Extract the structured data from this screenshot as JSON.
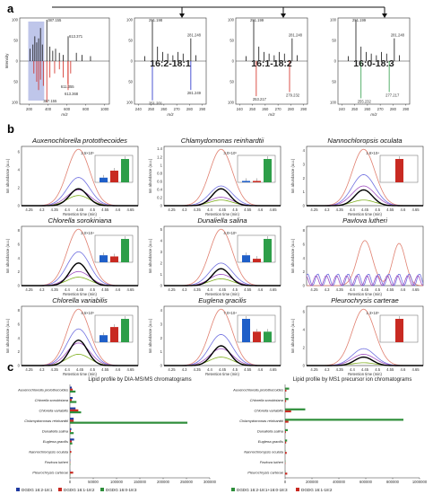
{
  "panel_labels": {
    "a": "a",
    "b": "b",
    "c": "c"
  },
  "panel_a": {
    "spectra": [
      {
        "id": "full",
        "xlabel": "m/z",
        "ylabel": "Intensity",
        "xticks": [
          "200",
          "400",
          "600",
          "800",
          "1000"
        ],
        "yticks": [
          "100",
          "50",
          "0",
          "50",
          "100"
        ],
        "peak_labels": {
          "top_a": "387.155",
          "top_b": "613.371",
          "bot_a": "387.155",
          "bot_b": "611.355",
          "bot_c": "613.368"
        },
        "top_peaks": [
          [
            210,
            30
          ],
          [
            240,
            40
          ],
          [
            260,
            60
          ],
          [
            280,
            45
          ],
          [
            300,
            55
          ],
          [
            320,
            80
          ],
          [
            340,
            40
          ],
          [
            387,
            100
          ],
          [
            420,
            35
          ],
          [
            450,
            25
          ],
          [
            480,
            30
          ],
          [
            520,
            20
          ],
          [
            560,
            15
          ],
          [
            613,
            60
          ],
          [
            700,
            20
          ],
          [
            760,
            15
          ],
          [
            850,
            12
          ]
        ],
        "bottom_peaks": [
          [
            250,
            30
          ],
          [
            280,
            50
          ],
          [
            300,
            70
          ],
          [
            320,
            45
          ],
          [
            350,
            60
          ],
          [
            387,
            100
          ],
          [
            420,
            40
          ],
          [
            470,
            30
          ],
          [
            520,
            20
          ],
          [
            560,
            40
          ],
          [
            611,
            55
          ],
          [
            613,
            70
          ],
          [
            640,
            30
          ]
        ]
      },
      {
        "id": "16:2-18:1",
        "label": "16:2-18:1",
        "color": "#1f2cc8",
        "xlabel": "m/z",
        "xticks": [
          "240",
          "250",
          "260",
          "270",
          "280",
          "290"
        ],
        "peak_labels": {
          "top_a": "251.198",
          "top_b": "281.248",
          "bot_a": "251.201",
          "bot_b": "281.249"
        },
        "top_peaks": [
          [
            245,
            12
          ],
          [
            251,
            100
          ],
          [
            255,
            35
          ],
          [
            259,
            22
          ],
          [
            263,
            18
          ],
          [
            267,
            14
          ],
          [
            271,
            22
          ],
          [
            275,
            18
          ],
          [
            281,
            55
          ],
          [
            285,
            14
          ]
        ],
        "bottom_peaks": [
          [
            251,
            95
          ],
          [
            281,
            70
          ]
        ]
      },
      {
        "id": "16:1-18:2",
        "label": "16:1-18:2",
        "color": "#d2261d",
        "xlabel": "m/z",
        "xticks": [
          "240",
          "250",
          "260",
          "270",
          "280",
          "290"
        ],
        "peak_labels": {
          "top_a": "251.199",
          "top_b": "281.248",
          "bot_a": "253.217",
          "bot_b": "279.232"
        },
        "top_peaks": [
          [
            245,
            12
          ],
          [
            251,
            100
          ],
          [
            255,
            35
          ],
          [
            259,
            22
          ],
          [
            263,
            18
          ],
          [
            267,
            14
          ],
          [
            271,
            22
          ],
          [
            275,
            18
          ],
          [
            281,
            55
          ],
          [
            285,
            14
          ]
        ],
        "bottom_peaks": [
          [
            253,
            85
          ],
          [
            279,
            75
          ]
        ]
      },
      {
        "id": "16:0-18:3",
        "label": "16:0-18:3",
        "color": "#2e9e49",
        "xlabel": "m/z",
        "xticks": [
          "240",
          "250",
          "260",
          "270",
          "280",
          "290"
        ],
        "peak_labels": {
          "top_a": "251.199",
          "top_b": "281.248",
          "bot_a": "255.232",
          "bot_b": "277.217"
        },
        "top_peaks": [
          [
            245,
            12
          ],
          [
            251,
            100
          ],
          [
            255,
            35
          ],
          [
            259,
            22
          ],
          [
            263,
            18
          ],
          [
            267,
            14
          ],
          [
            271,
            22
          ],
          [
            275,
            18
          ],
          [
            281,
            55
          ],
          [
            285,
            14
          ]
        ],
        "bottom_peaks": [
          [
            255,
            90
          ],
          [
            277,
            75
          ]
        ]
      }
    ]
  },
  "panel_b": {
    "xlabel": "Retention time (min)",
    "xticks": [
      "4.25",
      "4.3",
      "4.35",
      "4.4",
      "4.45",
      "4.5",
      "4.55",
      "4.6",
      "4.65"
    ],
    "rt": [
      4.25,
      4.3,
      4.35,
      4.4,
      4.45,
      4.5,
      4.55,
      4.6,
      4.65
    ],
    "trace_colors": [
      "#e08070",
      "#7070e0",
      "#a050c0",
      "#80b020",
      "#000000"
    ],
    "bar_colors": [
      "#1f5fc8",
      "#c82a22",
      "#2e9e49"
    ],
    "panels": [
      {
        "title": "Auxenochlorella protothecoides",
        "ylabel": "Ion abundance (a.u.)",
        "yticks": [
          "0",
          "2",
          "4",
          "6"
        ],
        "inset_label": "2.5×10⁵",
        "bars": [
          0.2,
          0.5,
          1.0
        ],
        "peak_heights": [
          1.0,
          0.5,
          0.28,
          0.18,
          0.3
        ],
        "ymax": 1.05
      },
      {
        "title": "Chlamydomonas reinhardtii",
        "ylabel": "Ion abundance (a.u.)",
        "yticks": [
          "0",
          "0.2",
          "0.4",
          "0.6",
          "0.8",
          "1",
          "1.2",
          "1.4"
        ],
        "inset_label": "3.0×10⁶",
        "bars": [
          0.06,
          0.06,
          1.0
        ],
        "peak_heights": [
          1.0,
          0.35,
          0.15,
          0.1,
          0.3
        ],
        "ymax": 1.05
      },
      {
        "title": "Nannochloropsis oculata",
        "ylabel": "Ion abundance (a.u.)",
        "yticks": [
          "0",
          "1",
          "2",
          "3",
          "4"
        ],
        "inset_label": "1.8×10⁴",
        "bars": [
          0.0,
          1.0,
          0.0
        ],
        "peak_heights": [
          1.0,
          0.55,
          0.35,
          0.1,
          0.28
        ],
        "ymax": 1.05
      },
      {
        "title": "Chlorella sorokiniana",
        "ylabel": "Ion abundance (a.u.)",
        "yticks": [
          "0",
          "2",
          "4",
          "6",
          "8"
        ],
        "inset_label": "2.0×10⁴",
        "bars": [
          0.3,
          0.25,
          1.0
        ],
        "peak_heights": [
          1.0,
          0.6,
          0.25,
          0.15,
          0.4
        ],
        "ymax": 1.05
      },
      {
        "title": "Dunaliella salina",
        "ylabel": "Ion abundance (a.u.)",
        "yticks": [
          "0",
          "1",
          "2",
          "3",
          "4",
          "5"
        ],
        "inset_label": "4.0×10⁵",
        "bars": [
          0.3,
          0.15,
          1.0
        ],
        "peak_heights": [
          1.0,
          0.4,
          0.2,
          0.12,
          0.3
        ],
        "ymax": 1.05
      },
      {
        "title": "Pavlova lutheri",
        "ylabel": "Ion abundance (a.u.)",
        "yticks": [
          "0",
          "2",
          "4",
          "6",
          "8"
        ],
        "inset_label": "",
        "bars": [],
        "peak_heights": [
          0.8,
          0.35,
          0.3,
          0.0,
          0.0
        ],
        "ymax": 1.05
      },
      {
        "title": "Chlorella variabilis",
        "ylabel": "Ion abundance (a.u.)",
        "yticks": [
          "0",
          "2",
          "4",
          "6",
          "8"
        ],
        "inset_label": "4.5×10⁶",
        "bars": [
          0.3,
          0.65,
          1.0
        ],
        "peak_heights": [
          1.0,
          0.65,
          0.4,
          0.2,
          0.45
        ],
        "ymax": 1.05
      },
      {
        "title": "Euglena gracilis",
        "ylabel": "Ion abundance (a.u.)",
        "yticks": [
          "0",
          "1",
          "2",
          "3",
          "4"
        ],
        "inset_label": "7.0×10⁴",
        "bars": [
          1.0,
          0.45,
          0.45
        ],
        "peak_heights": [
          1.0,
          0.55,
          0.3,
          0.15,
          0.35
        ],
        "ymax": 1.05
      },
      {
        "title": "Pleurochrysis carterae",
        "ylabel": "Ion abundance (a.u.)",
        "yticks": [
          "0",
          "2",
          "4",
          "6"
        ],
        "inset_label": "1.3×10⁵",
        "bars": [
          0.0,
          1.0,
          0.0
        ],
        "peak_heights": [
          1.0,
          0.3,
          0.2,
          0.05,
          0.15
        ],
        "ymax": 1.05
      }
    ]
  },
  "panel_c": {
    "left": {
      "title": "Lipid profile by DIA-MS/MS chromatograms",
      "xticks": [
        "0",
        "50000",
        "100000",
        "150000",
        "200000",
        "250000",
        "300000"
      ],
      "xmax": 300000,
      "species": [
        "Auxenochlorella protothecoides",
        "Chlorella sorokiniana",
        "Chlorella variabilis",
        "Chlamydomonas reinhardtii",
        "Dunaliella salina",
        "Euglena gracilis",
        "Nannochloropsis oculata",
        "Pavlova lutheri",
        "Pleurochrysis carterae"
      ],
      "series": [
        {
          "name": "DGDG 16:2-18:1",
          "color": "#1f3aa0",
          "values": [
            4000,
            6000,
            12000,
            8000,
            3000,
            9000,
            500,
            200,
            300
          ]
        },
        {
          "name": "DGDG 16:1-18:2",
          "color": "#c82a22",
          "values": [
            6000,
            4000,
            18000,
            8000,
            2000,
            4000,
            3000,
            300,
            7000
          ]
        },
        {
          "name": "DGDG 16:0-18:3",
          "color": "#2e8e3a",
          "values": [
            12000,
            14000,
            24000,
            252000,
            8000,
            5000,
            600,
            400,
            800
          ]
        }
      ]
    },
    "right": {
      "title": "Lipid profile by MS1 precursor ion chromatograms",
      "xticks": [
        "0",
        "200000",
        "400000",
        "600000",
        "800000",
        "1000000"
      ],
      "xmax": 1000000,
      "species": [
        "Auxenochlorella protothecoides",
        "Chlorella sorokiniana",
        "Chlorella variabilis",
        "Chlamydomonas reinhardtii",
        "Dunaliella salina",
        "Euglena gracilis",
        "Nannochloropsis oculata",
        "Pavlova lutheri",
        "Pleurochrysis carterae"
      ],
      "series": [
        {
          "name": "DGDG 16:2-18:1+16:0-18:3",
          "color": "#2e8e3a",
          "values": [
            30000,
            25000,
            150000,
            880000,
            20000,
            15000,
            1000,
            800,
            2000
          ]
        },
        {
          "name": "DGDG 16:1-18:2",
          "color": "#c82a22",
          "values": [
            10000,
            8000,
            45000,
            25000,
            6000,
            8000,
            12000,
            1500,
            16000
          ]
        }
      ]
    }
  }
}
